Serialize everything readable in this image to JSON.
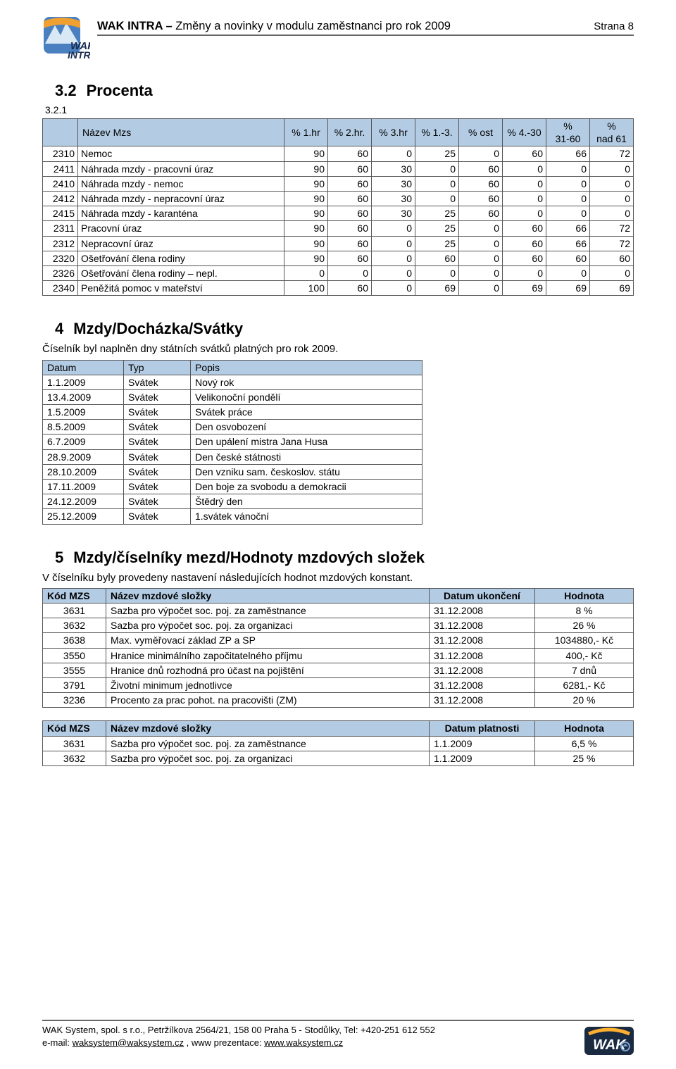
{
  "header": {
    "brand": "WAK INTRA",
    "dash": " – ",
    "subtitle": "Změny a novinky v modulu zaměstnanci pro rok 2009",
    "page": "Strana 8"
  },
  "logo": {
    "band_color": "#f0a030",
    "sky_color": "#4a80c0",
    "mountain_color": "#d8e8f4",
    "text_top": "WAK",
    "text_bot": "INTRA"
  },
  "sec32": {
    "num": "3.2",
    "title": "Procenta",
    "sub": "3.2.1",
    "headers": [
      "",
      "Název Mzs",
      "% 1.hr",
      "% 2.hr.",
      "% 3.hr",
      "% 1.-3.",
      "% ost",
      "% 4.-30",
      "% 31-60",
      "% nad 61"
    ],
    "rows": [
      [
        "2310",
        "Nemoc",
        "90",
        "60",
        "0",
        "25",
        "0",
        "60",
        "66",
        "72"
      ],
      [
        "2411",
        "Náhrada mzdy - pracovní úraz",
        "90",
        "60",
        "30",
        "0",
        "60",
        "0",
        "0",
        "0"
      ],
      [
        "2410",
        "Náhrada mzdy - nemoc",
        "90",
        "60",
        "30",
        "0",
        "60",
        "0",
        "0",
        "0"
      ],
      [
        "2412",
        "Náhrada mzdy - nepracovní úraz",
        "90",
        "60",
        "30",
        "0",
        "60",
        "0",
        "0",
        "0"
      ],
      [
        "2415",
        "Náhrada mzdy - karanténa",
        "90",
        "60",
        "30",
        "25",
        "60",
        "0",
        "0",
        "0"
      ],
      [
        "2311",
        "Pracovní úraz",
        "90",
        "60",
        "0",
        "25",
        "0",
        "60",
        "66",
        "72"
      ],
      [
        "2312",
        "Nepracovní úraz",
        "90",
        "60",
        "0",
        "25",
        "0",
        "60",
        "66",
        "72"
      ],
      [
        "2320",
        "Ošetřování člena rodiny",
        "90",
        "60",
        "0",
        "60",
        "0",
        "60",
        "60",
        "60"
      ],
      [
        "2326",
        "Ošetřování člena rodiny – nepl.",
        "0",
        "0",
        "0",
        "0",
        "0",
        "0",
        "0",
        "0"
      ],
      [
        "2340",
        "Peněžitá pomoc v mateřství",
        "100",
        "60",
        "0",
        "69",
        "0",
        "69",
        "69",
        "69"
      ]
    ]
  },
  "sec4": {
    "num": "4",
    "title": "Mzdy/Docházka/Svátky",
    "intro": "Číselník byl naplněn dny státních svátků platných pro rok 2009.",
    "headers": [
      "Datum",
      "Typ",
      "Popis"
    ],
    "rows": [
      [
        "1.1.2009",
        "Svátek",
        "Nový rok"
      ],
      [
        "13.4.2009",
        "Svátek",
        "Velikonoční pondělí"
      ],
      [
        "1.5.2009",
        "Svátek",
        "Svátek práce"
      ],
      [
        "8.5.2009",
        "Svátek",
        "Den osvobození"
      ],
      [
        "6.7.2009",
        "Svátek",
        "Den upálení mistra Jana Husa"
      ],
      [
        "28.9.2009",
        "Svátek",
        "Den české státnosti"
      ],
      [
        "28.10.2009",
        "Svátek",
        "Den vzniku sam. českoslov. státu"
      ],
      [
        "17.11.2009",
        "Svátek",
        "Den boje za svobodu a demokracii"
      ],
      [
        "24.12.2009",
        "Svátek",
        "Štědrý den"
      ],
      [
        "25.12.2009",
        "Svátek",
        "1.svátek vánoční"
      ]
    ]
  },
  "sec5": {
    "num": "5",
    "title": "Mzdy/číselníky mezd/Hodnoty mzdových složek",
    "intro": "V číselníku byly provedeny nastavení následujících hodnot mzdových konstant.",
    "t1": {
      "headers": [
        "Kód MZS",
        "Název mzdové složky",
        "Datum ukončení",
        "Hodnota"
      ],
      "rows": [
        [
          "3631",
          "Sazba pro výpočet soc. poj. za zaměstnance",
          "31.12.2008",
          "8 %"
        ],
        [
          "3632",
          "Sazba pro výpočet soc. poj. za organizaci",
          "31.12.2008",
          "26 %"
        ],
        [
          "3638",
          "Max. vyměřovací základ ZP a SP",
          "31.12.2008",
          "1034880,- Kč"
        ],
        [
          "3550",
          "Hranice minimálního započitatelného příjmu",
          "31.12.2008",
          "400,- Kč"
        ],
        [
          "3555",
          "Hranice dnů rozhodná pro účast na pojištění",
          "31.12.2008",
          "7 dnů"
        ],
        [
          "3791",
          "Životní minimum jednotlivce",
          "31.12.2008",
          "6281,- Kč"
        ],
        [
          "3236",
          "Procento za prac pohot. na pracovišti (ZM)",
          "31.12.2008",
          "20 %"
        ]
      ]
    },
    "t2": {
      "headers": [
        "Kód MZS",
        "Název mzdové složky",
        "Datum platnosti",
        "Hodnota"
      ],
      "rows": [
        [
          "3631",
          "Sazba pro výpočet soc. poj. za zaměstnance",
          "1.1.2009",
          "6,5 %"
        ],
        [
          "3632",
          "Sazba pro výpočet soc. poj. za organizaci",
          "1.1.2009",
          "25 %"
        ]
      ]
    }
  },
  "footer": {
    "line1": "WAK System, spol. s r.o., Petržílkova 2564/21, 158 00 Praha 5  - Stodůlky, Tel: +420-251 612 552",
    "line2a": "e-mail: ",
    "email": "waksystem@waksystem.cz",
    "line2b": " ,  www prezentace: ",
    "url": "www.waksystem.cz"
  },
  "logo_bot": {
    "bg": "#1a2a40",
    "arc": "#ffb030",
    "text": "WAK"
  }
}
